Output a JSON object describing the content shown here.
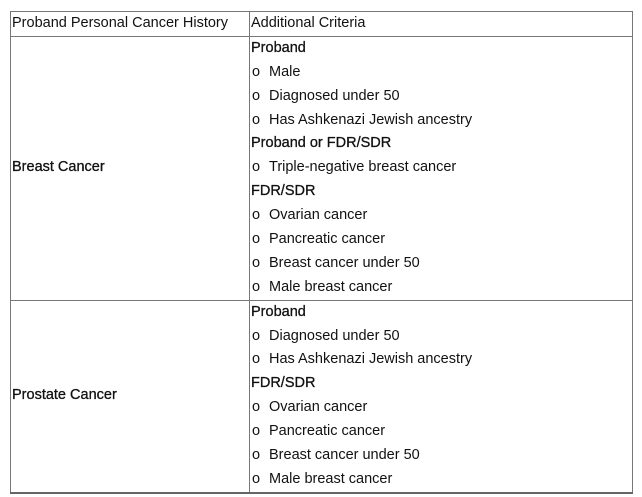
{
  "table": {
    "headers": [
      "Proband Personal Cancer History",
      "Additional Criteria"
    ],
    "rows": [
      {
        "history": "Breast Cancer",
        "sections": [
          {
            "heading": "Proband",
            "items": [
              "Male",
              "Diagnosed under 50",
              "Has Ashkenazi Jewish ancestry"
            ]
          },
          {
            "heading": "Proband or FDR/SDR",
            "items": [
              "Triple-negative breast cancer"
            ]
          },
          {
            "heading": "FDR/SDR",
            "items": [
              "Ovarian cancer",
              "Pancreatic cancer",
              "Breast cancer under 50",
              "Male breast cancer"
            ]
          }
        ]
      },
      {
        "history": "Prostate Cancer",
        "sections": [
          {
            "heading": "Proband",
            "items": [
              "Diagnosed under 50",
              "Has Ashkenazi Jewish ancestry"
            ]
          },
          {
            "heading": "FDR/SDR",
            "items": [
              "Ovarian cancer",
              "Pancreatic cancer",
              "Breast cancer under 50",
              "Male breast cancer"
            ]
          }
        ]
      }
    ],
    "bullet_glyph": "o"
  }
}
